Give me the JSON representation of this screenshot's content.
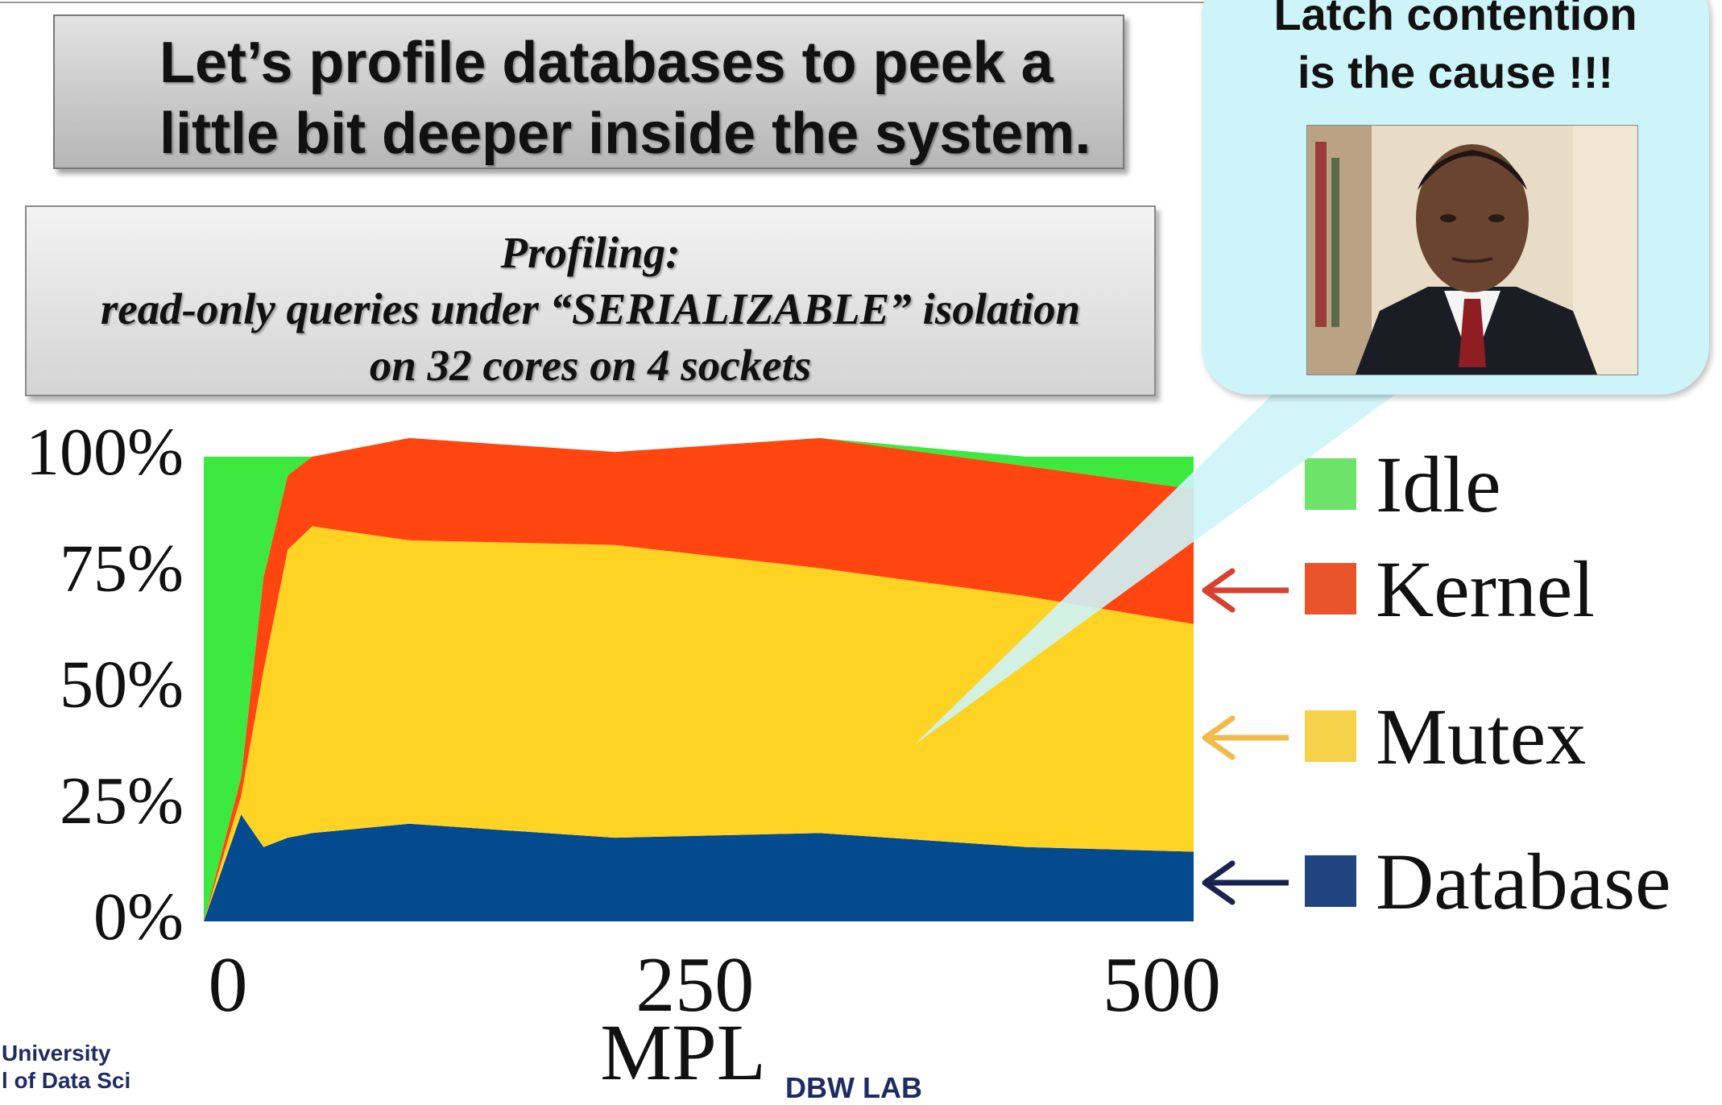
{
  "slide": {
    "title": "Let’s profile databases to peek a\nlittle bit deeper inside the system.",
    "profiling": {
      "heading": "Profiling:",
      "line1": "read-only queries under “SERIALIZABLE” isolation",
      "line2": "on 32 cores on 4 sockets"
    },
    "callout_text": "Latch contention\nis the cause !!!",
    "footer_university": "University",
    "footer_partial": "l of Data Sci",
    "footer_lab_partial": "DBW LAB"
  },
  "colors": {
    "idle": "#3de93f",
    "kernel": "#ff4510",
    "mutex": "#ffd324",
    "database": "#034a8f",
    "legend_idle": "#6de36a",
    "legend_kernel": "#e9542b",
    "legend_mutex": "#f5d24a",
    "legend_database": "#1f447e",
    "arrow_kernel": "#d7412f",
    "arrow_mutex": "#f0bb4a",
    "arrow_database": "#16244f",
    "callout_fill": "#cdf4f8"
  },
  "chart_data": {
    "type": "area",
    "stacked": true,
    "xlabel": "MPL",
    "ylabel": "",
    "xlim": [
      0,
      530
    ],
    "ylim": [
      0,
      100
    ],
    "x_ticks": [
      0,
      250,
      500
    ],
    "y_ticks": [
      0,
      25,
      50,
      75,
      100
    ],
    "y_tick_labels": [
      "0%",
      "25%",
      "50%",
      "75%",
      "100%"
    ],
    "x": [
      0,
      20,
      32,
      45,
      58,
      110,
      220,
      330,
      440,
      530
    ],
    "series": [
      {
        "name": "Database",
        "values": [
          0,
          23,
          16,
          18,
          19,
          21,
          18,
          19,
          16,
          15
        ]
      },
      {
        "name": "Mutex",
        "values": [
          0,
          4,
          38,
          62,
          66,
          61,
          63,
          57,
          54,
          49
        ]
      },
      {
        "name": "Kernel",
        "values": [
          0,
          4,
          20,
          16,
          15,
          22,
          20,
          28,
          28,
          29
        ]
      },
      {
        "name": "Idle",
        "values": [
          100,
          69,
          26,
          4,
          0,
          0,
          0,
          0,
          2,
          7
        ]
      }
    ],
    "legend": {
      "position": "right",
      "entries": [
        "Idle",
        "Kernel",
        "Mutex",
        "Database"
      ],
      "arrows_to": [
        "Kernel",
        "Mutex",
        "Database"
      ]
    },
    "grid": false
  }
}
